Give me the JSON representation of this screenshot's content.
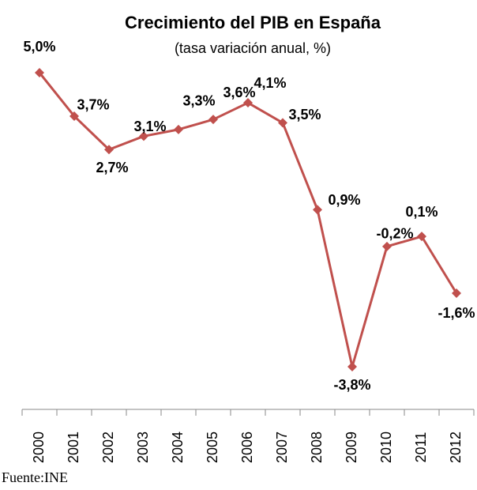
{
  "chart_data": {
    "type": "line",
    "title": "Crecimiento del PIB en España",
    "subtitle": "(tasa variación anual, %)",
    "source": "Fuente:INE",
    "categories": [
      "2000",
      "2001",
      "2002",
      "2003",
      "2004",
      "2005",
      "2006",
      "2007",
      "2008",
      "2009",
      "2010",
      "2011",
      "2012"
    ],
    "series": [
      {
        "name": "PIB",
        "color": "#c0504d",
        "values": [
          5.0,
          3.7,
          2.7,
          3.1,
          3.3,
          3.6,
          4.1,
          3.5,
          0.9,
          -3.8,
          -0.2,
          0.1,
          -1.6
        ],
        "value_labels": [
          "5,0%",
          "3,7%",
          "2,7%",
          "3,1%",
          "3,3%",
          "3,6%",
          "4,1%",
          "3,5%",
          "0,9%",
          "-3,8%",
          "-0,2%",
          "0,1%",
          "-1,6%"
        ]
      }
    ]
  }
}
